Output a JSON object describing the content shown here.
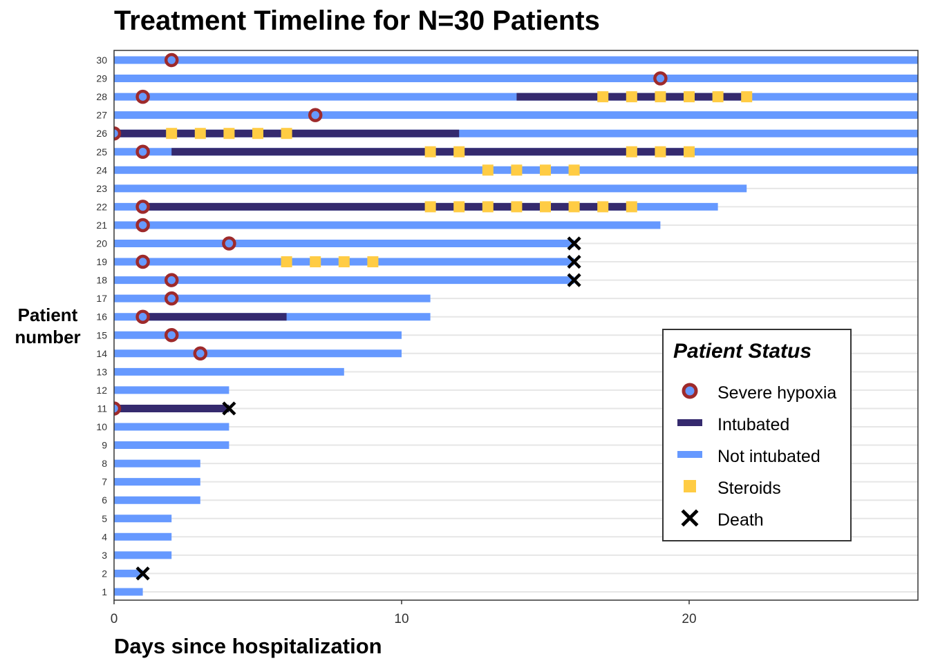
{
  "chart_data": {
    "type": "timeline",
    "title": "Treatment Timeline for N=30 Patients",
    "xlabel": "Days since hospitalization",
    "ylabel": "Patient\nnumber",
    "xlim": [
      0,
      28
    ],
    "ylim": [
      1,
      30
    ],
    "x_ticks": [
      0,
      10,
      20
    ],
    "y_ticks": [
      1,
      2,
      3,
      4,
      5,
      6,
      7,
      8,
      9,
      10,
      11,
      12,
      13,
      14,
      15,
      16,
      17,
      18,
      19,
      20,
      21,
      22,
      23,
      24,
      25,
      26,
      27,
      28,
      29,
      30
    ],
    "grid": "horizontal",
    "legend_position": "bottom-right",
    "legend": {
      "title": "Patient Status",
      "entries": [
        "Severe hypoxia",
        "Intubated",
        "Not intubated",
        "Steroids",
        "Death"
      ]
    },
    "colors": {
      "severe_hypoxia": "#9e2a2b",
      "intubated": "#352a6e",
      "not_intubated": "#6699ff",
      "steroids": "#ffcc44",
      "death": "#000000",
      "grid": "#e6e6e6"
    },
    "patients": [
      {
        "id": 1,
        "end": 1,
        "hypoxia": null,
        "intubated": [],
        "steroids": [],
        "death": null
      },
      {
        "id": 2,
        "end": 1,
        "hypoxia": null,
        "intubated": [],
        "steroids": [],
        "death": 1
      },
      {
        "id": 3,
        "end": 2,
        "hypoxia": null,
        "intubated": [],
        "steroids": [],
        "death": null
      },
      {
        "id": 4,
        "end": 2,
        "hypoxia": null,
        "intubated": [],
        "steroids": [],
        "death": null
      },
      {
        "id": 5,
        "end": 2,
        "hypoxia": null,
        "intubated": [],
        "steroids": [],
        "death": null
      },
      {
        "id": 6,
        "end": 3,
        "hypoxia": null,
        "intubated": [],
        "steroids": [],
        "death": null
      },
      {
        "id": 7,
        "end": 3,
        "hypoxia": null,
        "intubated": [],
        "steroids": [],
        "death": null
      },
      {
        "id": 8,
        "end": 3,
        "hypoxia": null,
        "intubated": [],
        "steroids": [],
        "death": null
      },
      {
        "id": 9,
        "end": 4,
        "hypoxia": null,
        "intubated": [],
        "steroids": [],
        "death": null
      },
      {
        "id": 10,
        "end": 4,
        "hypoxia": null,
        "intubated": [],
        "steroids": [],
        "death": null
      },
      {
        "id": 11,
        "end": 4,
        "hypoxia": 0,
        "intubated": [
          [
            0,
            4
          ]
        ],
        "steroids": [],
        "death": 4
      },
      {
        "id": 12,
        "end": 4,
        "hypoxia": null,
        "intubated": [],
        "steroids": [],
        "death": null
      },
      {
        "id": 13,
        "end": 8,
        "hypoxia": null,
        "intubated": [],
        "steroids": [],
        "death": null
      },
      {
        "id": 14,
        "end": 10,
        "hypoxia": 3,
        "intubated": [],
        "steroids": [],
        "death": null
      },
      {
        "id": 15,
        "end": 10,
        "hypoxia": 2,
        "intubated": [],
        "steroids": [],
        "death": null
      },
      {
        "id": 16,
        "end": 11,
        "hypoxia": 1,
        "intubated": [
          [
            1,
            6
          ]
        ],
        "steroids": [],
        "death": null
      },
      {
        "id": 17,
        "end": 11,
        "hypoxia": 2,
        "intubated": [],
        "steroids": [],
        "death": null
      },
      {
        "id": 18,
        "end": 16,
        "hypoxia": 2,
        "intubated": [],
        "steroids": [],
        "death": 16
      },
      {
        "id": 19,
        "end": 16,
        "hypoxia": 1,
        "intubated": [],
        "steroids": [
          6,
          7,
          8,
          9
        ],
        "death": 16
      },
      {
        "id": 20,
        "end": 16,
        "hypoxia": 4,
        "intubated": [],
        "steroids": [],
        "death": 16
      },
      {
        "id": 21,
        "end": 19,
        "hypoxia": 1,
        "intubated": [],
        "steroids": [],
        "death": null
      },
      {
        "id": 22,
        "end": 21,
        "hypoxia": 1,
        "intubated": [
          [
            1,
            18
          ]
        ],
        "steroids": [
          11,
          12,
          13,
          14,
          15,
          16,
          17,
          18
        ],
        "death": null
      },
      {
        "id": 23,
        "end": 22,
        "hypoxia": null,
        "intubated": [],
        "steroids": [],
        "death": null
      },
      {
        "id": 24,
        "end": 28,
        "hypoxia": null,
        "intubated": [],
        "steroids": [
          13,
          14,
          15,
          16
        ],
        "death": null
      },
      {
        "id": 25,
        "end": 28,
        "hypoxia": 1,
        "intubated": [
          [
            2,
            20
          ]
        ],
        "steroids": [
          11,
          12,
          18,
          19,
          20
        ],
        "death": null
      },
      {
        "id": 26,
        "end": 28,
        "hypoxia": 0,
        "intubated": [
          [
            0,
            12
          ]
        ],
        "steroids": [
          2,
          3,
          4,
          5,
          6
        ],
        "death": null
      },
      {
        "id": 27,
        "end": 28,
        "hypoxia": 7,
        "intubated": [],
        "steroids": [],
        "death": null
      },
      {
        "id": 28,
        "end": 28,
        "hypoxia": 1,
        "intubated": [
          [
            14,
            22
          ]
        ],
        "steroids": [
          17,
          18,
          19,
          20,
          21,
          22
        ],
        "death": null
      },
      {
        "id": 29,
        "end": 28,
        "hypoxia": 19,
        "intubated": [],
        "steroids": [],
        "death": null
      },
      {
        "id": 30,
        "end": 28,
        "hypoxia": 2,
        "intubated": [],
        "steroids": [],
        "death": null
      }
    ]
  }
}
